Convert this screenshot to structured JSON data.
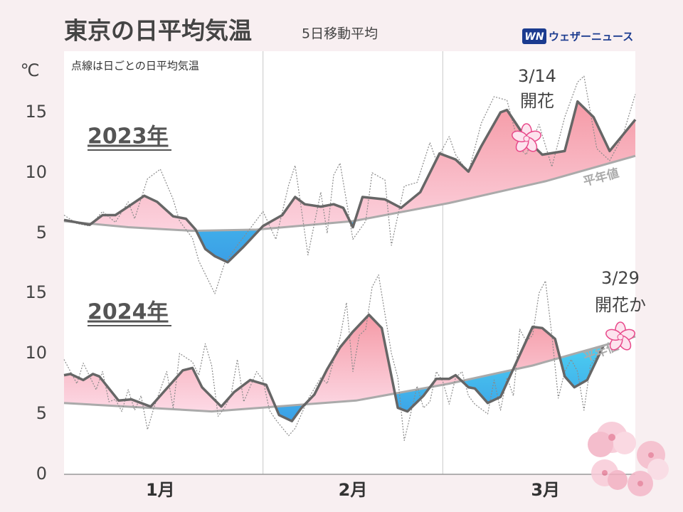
{
  "header": {
    "title": "東京の日平均気温",
    "subtitle": "5日移動平均",
    "note": "点線は日ごとの日平均気温",
    "brand": "ウェザーニュース",
    "brand_badge": "WN",
    "unit": "℃"
  },
  "chart_data": [
    {
      "type": "line",
      "label": "2023年",
      "annotation": [
        "3/14",
        "開花"
      ],
      "xlim": [
        0,
        89
      ],
      "ylim": [
        2,
        20
      ],
      "yticks": [
        5,
        10,
        15
      ],
      "xgrid": [
        31,
        59
      ],
      "fill_above": "#f5a3ae",
      "fill_below": "#36c9f0",
      "series": [
        {
          "color": "#666666",
          "line_style": "solid",
          "x": [
            0,
            4,
            6,
            8,
            10,
            12.5,
            14.5,
            17,
            19,
            20.5,
            22,
            23.5,
            25.5,
            28,
            31,
            34,
            36,
            37.5,
            40,
            42,
            43.5,
            45,
            46.5,
            50,
            52.5,
            55.5,
            58.5,
            61,
            63,
            65,
            68,
            69,
            72,
            74.5,
            78,
            80,
            82.5,
            85,
            87,
            89
          ],
          "values": [
            6.1,
            5.7,
            6.5,
            6.5,
            7.2,
            8.1,
            7.6,
            6.4,
            6.2,
            5.3,
            3.7,
            3.1,
            2.6,
            3.9,
            5.6,
            6.5,
            8.0,
            7.4,
            7.2,
            7.4,
            7.1,
            5.5,
            8.0,
            7.8,
            7.1,
            8.4,
            11.6,
            11.1,
            10.1,
            12.2,
            15.0,
            15.2,
            12.8,
            11.5,
            11.8,
            15.9,
            14.6,
            11.8,
            13.1,
            14.4
          ]
        },
        {
          "color": "#8a8a8a",
          "line_style": "dotted",
          "x": [
            0,
            2,
            4,
            6,
            8,
            10,
            11,
            13,
            15,
            17,
            18,
            20,
            21,
            23.5,
            25,
            27,
            29,
            31,
            33,
            35,
            36,
            38,
            40,
            41,
            42,
            43,
            45,
            47,
            48,
            50,
            51,
            53,
            55,
            57,
            58,
            60,
            61,
            63,
            65,
            67,
            69,
            71,
            72,
            74,
            76,
            78,
            80,
            81,
            83,
            85,
            87,
            89
          ],
          "values": [
            6.5,
            5.8,
            5.6,
            6.8,
            5.9,
            7.6,
            6.2,
            9.5,
            10.3,
            7.8,
            6.0,
            4.6,
            2.7,
            0.0,
            2.5,
            4.0,
            5.4,
            6.8,
            4.5,
            9.0,
            10.6,
            3.2,
            8.4,
            5.0,
            9.8,
            10.8,
            4.5,
            6.0,
            10.0,
            9.4,
            4.0,
            8.9,
            9.2,
            12.5,
            11.0,
            13.0,
            11.5,
            10.0,
            14.1,
            16.3,
            16.0,
            12.0,
            11.5,
            14.0,
            10.5,
            14.6,
            17.5,
            18.0,
            12.0,
            11.0,
            13.0,
            16.5
          ]
        },
        {
          "color": "#aaaaaa",
          "line_style": "solid",
          "label": "平年値",
          "x": [
            0,
            10,
            20,
            30,
            45,
            60,
            75,
            89
          ],
          "values": [
            6.0,
            5.5,
            5.2,
            5.3,
            6.0,
            7.5,
            9.3,
            11.4
          ]
        }
      ]
    },
    {
      "type": "line",
      "label": "2024年",
      "annotation": [
        "3/29",
        "開花か"
      ],
      "xlim": [
        0,
        89
      ],
      "ylim": [
        0,
        16
      ],
      "yticks": [
        0,
        5,
        10,
        15
      ],
      "xgrid": [
        31,
        59
      ],
      "xticks": [
        {
          "value": 15,
          "label": "1月"
        },
        {
          "value": 45,
          "label": "2月"
        },
        {
          "value": 75,
          "label": "3月"
        }
      ],
      "fill_above": "#f5a3ae",
      "fill_below": "#36c9f0",
      "series": [
        {
          "color": "#666666",
          "line_style": "solid",
          "x": [
            0,
            1,
            3,
            4.5,
            5.5,
            7,
            8.5,
            10.5,
            13.5,
            15.5,
            18.5,
            20,
            21.5,
            24.5,
            26.5,
            29,
            31.5,
            33.5,
            35.5,
            37,
            39,
            41,
            43,
            45,
            47.5,
            49.5,
            52,
            53.5,
            56,
            58,
            60,
            61,
            63,
            64,
            66,
            68,
            70.5,
            73,
            74.5,
            76.5,
            78,
            79.5,
            81.5,
            84
          ],
          "values": [
            8.2,
            8.3,
            7.8,
            8.3,
            8.1,
            7.1,
            6.1,
            6.2,
            5.6,
            6.8,
            8.6,
            8.8,
            7.2,
            5.6,
            6.8,
            7.8,
            7.4,
            4.9,
            4.4,
            5.5,
            6.6,
            8.7,
            10.5,
            11.8,
            13.2,
            12.1,
            5.5,
            5.2,
            6.5,
            7.9,
            7.9,
            8.2,
            7.2,
            7.1,
            5.9,
            6.4,
            9.3,
            12.2,
            12.1,
            11.2,
            8.1,
            7.2,
            7.8,
            10.6
          ]
        },
        {
          "color": "#8a8a8a",
          "line_style": "dotted",
          "x": [
            0,
            2,
            3,
            5,
            6,
            7,
            8,
            9,
            10,
            11,
            12,
            13,
            14,
            16,
            17,
            18,
            20,
            21,
            22,
            23,
            24,
            25,
            26,
            27,
            28,
            30,
            31,
            32,
            33,
            35,
            36,
            38,
            40,
            41,
            43,
            44,
            45,
            46,
            47,
            48,
            49,
            51,
            52,
            53,
            54,
            55,
            56,
            57,
            58,
            59,
            60,
            61,
            62,
            63,
            64,
            66,
            67,
            68,
            69,
            70,
            71,
            72,
            73,
            74,
            75,
            76,
            77,
            78,
            79,
            80,
            81,
            82,
            84
          ],
          "values": [
            9.5,
            7.5,
            9.2,
            7.0,
            8.5,
            6.0,
            6.2,
            5.2,
            7.0,
            5.3,
            6.5,
            3.7,
            5.5,
            8.5,
            5.5,
            10.0,
            9.3,
            8.2,
            10.8,
            9.0,
            4.8,
            5.5,
            6.5,
            9.5,
            6.0,
            8.5,
            7.8,
            5.3,
            4.5,
            3.2,
            3.8,
            6.2,
            8.0,
            7.5,
            11.3,
            14.2,
            8.5,
            11.5,
            12.0,
            15.5,
            16.5,
            10.0,
            8.0,
            2.8,
            5.0,
            7.3,
            5.5,
            6.0,
            8.5,
            7.7,
            5.8,
            8.0,
            8.5,
            6.5,
            5.8,
            5.0,
            7.8,
            5.3,
            8.0,
            6.5,
            12.0,
            11.0,
            11.5,
            15.0,
            16.0,
            11.5,
            6.3,
            8.5,
            9.5,
            8.5,
            5.3,
            9.0,
            10.5
          ]
        },
        {
          "color": "#aaaaaa",
          "line_style": "solid",
          "label": "平年値",
          "x": [
            0,
            23,
            45.5,
            60,
            73,
            89
          ],
          "values": [
            5.9,
            5.2,
            6.1,
            7.5,
            9.0,
            11.4
          ]
        }
      ]
    }
  ]
}
